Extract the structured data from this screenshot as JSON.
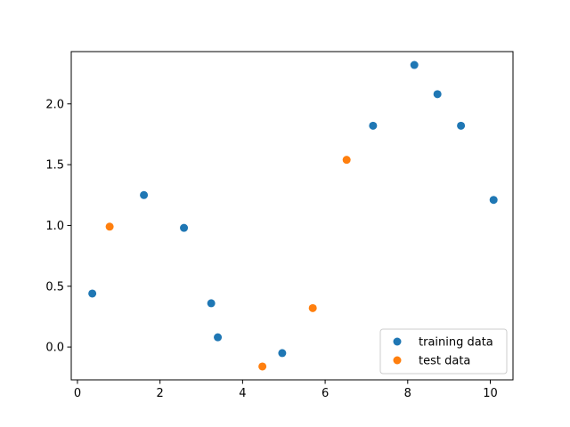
{
  "chart_data": {
    "type": "scatter",
    "title": "",
    "xlabel": "",
    "ylabel": "",
    "xlim": [
      -0.15,
      10.55
    ],
    "ylim": [
      -0.27,
      2.43
    ],
    "xticks": [
      0,
      2,
      4,
      6,
      8,
      10
    ],
    "xtick_labels": [
      "0",
      "2",
      "4",
      "6",
      "8",
      "10"
    ],
    "yticks": [
      0.0,
      0.5,
      1.0,
      1.5,
      2.0
    ],
    "ytick_labels": [
      "0.0",
      "0.5",
      "1.0",
      "1.5",
      "2.0"
    ],
    "grid": false,
    "legend_position": "lower-right",
    "series": [
      {
        "name": "training data",
        "color": "#1f77b4",
        "points": [
          {
            "x": 0.36,
            "y": 0.44
          },
          {
            "x": 1.61,
            "y": 1.25
          },
          {
            "x": 2.58,
            "y": 0.98
          },
          {
            "x": 3.24,
            "y": 0.36
          },
          {
            "x": 3.4,
            "y": 0.08
          },
          {
            "x": 4.96,
            "y": -0.05
          },
          {
            "x": 7.16,
            "y": 1.82
          },
          {
            "x": 8.16,
            "y": 2.32
          },
          {
            "x": 8.72,
            "y": 2.08
          },
          {
            "x": 9.29,
            "y": 1.82
          },
          {
            "x": 10.08,
            "y": 1.21
          }
        ]
      },
      {
        "name": "test data",
        "color": "#ff7f0e",
        "points": [
          {
            "x": 0.78,
            "y": 0.99
          },
          {
            "x": 4.48,
            "y": -0.16
          },
          {
            "x": 5.7,
            "y": 0.32
          },
          {
            "x": 6.52,
            "y": 1.54
          }
        ]
      }
    ]
  }
}
